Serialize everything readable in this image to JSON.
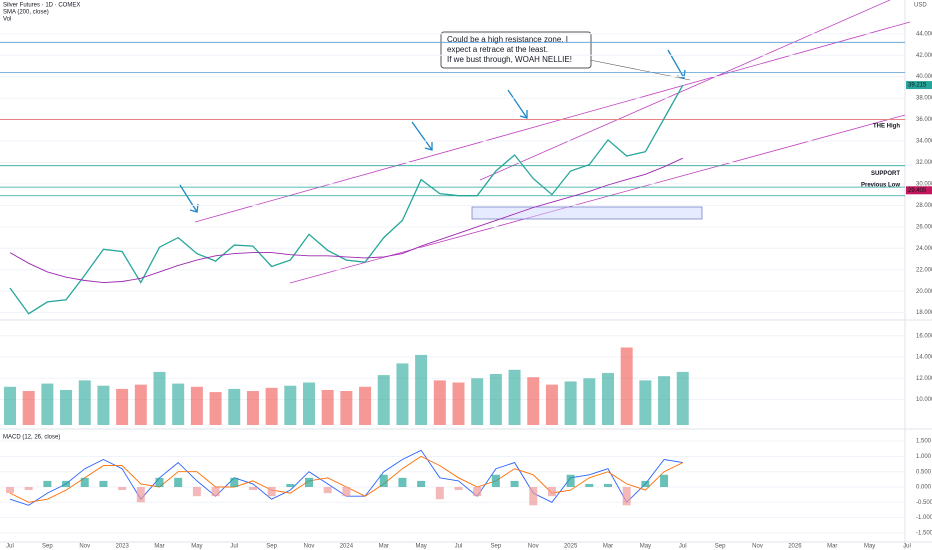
{
  "chart_data": [
    {
      "type": "line",
      "title": "Silver Futures · 1D · COMEX",
      "currency": "USD",
      "pane": "price",
      "ylim": [
        17.5,
        46.4
      ],
      "yticks": [
        {
          "value": 18,
          "label": "18.000"
        },
        {
          "value": 20,
          "label": "20.000"
        },
        {
          "value": 22,
          "label": "22.000"
        },
        {
          "value": 24,
          "label": "24.000"
        },
        {
          "value": 26,
          "label": "26.000"
        },
        {
          "value": 28,
          "label": "28.000"
        },
        {
          "value": 30,
          "label": "30.000"
        },
        {
          "value": 32,
          "label": "32.000"
        },
        {
          "value": 34,
          "label": "34.000"
        },
        {
          "value": 36,
          "label": "36.000"
        },
        {
          "value": 38,
          "label": "38.000"
        },
        {
          "value": 40,
          "label": "40.000"
        },
        {
          "value": 42,
          "label": "42.000"
        },
        {
          "value": 44,
          "label": "44.000"
        }
      ],
      "series": [
        {
          "color": "#26a69a",
          "values": [
            20.3,
            17.9,
            19.0,
            19.2,
            21.5,
            23.9,
            23.7,
            20.8,
            24.1,
            25.0,
            23.5,
            22.8,
            24.3,
            24.2,
            22.3,
            22.9,
            25.3,
            23.8,
            22.9,
            22.7,
            25.0,
            26.6,
            30.4,
            29.1,
            28.9,
            28.9,
            31.2,
            32.7,
            30.5,
            29.0,
            31.2,
            31.8,
            34.1,
            32.6,
            33.0,
            36.1,
            39.2,
            null,
            null,
            null,
            null,
            null,
            null,
            null,
            null,
            null,
            null,
            null,
            null
          ]
        },
        {
          "name": "SMA (200, close)",
          "color": "#9c27b0",
          "values": [
            23.6,
            22.6,
            21.8,
            21.3,
            21.0,
            20.8,
            20.9,
            21.2,
            21.8,
            22.4,
            22.9,
            23.3,
            23.5,
            23.6,
            23.6,
            23.4,
            23.3,
            23.3,
            23.2,
            23.1,
            23.2,
            23.5,
            24.2,
            24.8,
            25.4,
            26.0,
            26.6,
            27.2,
            27.8,
            28.3,
            28.8,
            29.3,
            29.9,
            30.4,
            30.9,
            31.6,
            32.4,
            null,
            null,
            null,
            null,
            null,
            null,
            null,
            null,
            null,
            null,
            null,
            null
          ]
        }
      ],
      "hlines": [
        {
          "value": 43.2,
          "color": "#5b9bd5"
        },
        {
          "value": 40.4,
          "color": "#5b9bd5"
        },
        {
          "value": 36.0,
          "color": "#e57373"
        },
        {
          "value": 31.7,
          "color": "#26a69a"
        },
        {
          "value": 29.7,
          "color": "#26a69a"
        },
        {
          "value": 28.9,
          "color": "#26a69a"
        }
      ],
      "price_tags": [
        {
          "value": 39.215,
          "label": "39.215",
          "color": "#26a69a"
        },
        {
          "value": 29.405,
          "label": "29.405",
          "color": "#c2185b"
        }
      ],
      "notes": [
        {
          "text": "THE High",
          "value": 35.4
        },
        {
          "text": "SUPPORT",
          "value": 31.0
        },
        {
          "text": "Previous Low",
          "value": 29.9
        }
      ],
      "annotation": [
        "Could be a high resistance zone. I",
        "expect a retrace at the least.",
        "If we bust through, WOAH NELLIE!"
      ]
    },
    {
      "type": "bar",
      "pane": "volume",
      "ylim": [
        7.6,
        17.3
      ],
      "yticks": [
        {
          "value": 10,
          "label": "10.000"
        },
        {
          "value": 12,
          "label": "12.000"
        },
        {
          "value": 14,
          "label": "14.000"
        },
        {
          "value": 16,
          "label": "16.000"
        }
      ],
      "series": [
        {
          "name": "Vol",
          "color": "#26a69a",
          "down_color": "#ef5350",
          "values": [
            11.2,
            10.8,
            11.5,
            10.9,
            11.8,
            11.3,
            11.0,
            11.4,
            12.6,
            11.5,
            11.2,
            10.7,
            11.0,
            10.8,
            11.1,
            11.3,
            11.6,
            10.9,
            10.8,
            11.2,
            12.3,
            13.4,
            14.2,
            11.8,
            11.6,
            12.0,
            12.4,
            12.8,
            12.1,
            11.4,
            11.7,
            12.0,
            12.5,
            14.9,
            11.8,
            12.2,
            12.6,
            null,
            null,
            null,
            null,
            null,
            null,
            null,
            null,
            null,
            null,
            null,
            null
          ]
        }
      ]
    },
    {
      "type": "line",
      "pane": "macd",
      "title": "MACD (12, 26, close)",
      "ylim": [
        -1.8,
        1.8
      ],
      "yticks": [
        {
          "value": -1.5,
          "label": "-1.500"
        },
        {
          "value": -1,
          "label": "-1.000"
        },
        {
          "value": -0.5,
          "label": "-0.500"
        },
        {
          "value": 0,
          "label": "0.000"
        },
        {
          "value": 0.5,
          "label": "0.500"
        },
        {
          "value": 1,
          "label": "1.000"
        },
        {
          "value": 1.5,
          "label": "1.500"
        }
      ],
      "categories": [
        "Jul",
        null,
        "Sep",
        null,
        "Nov",
        null,
        "2023",
        null,
        "Mar",
        null,
        "May",
        null,
        "Jul",
        null,
        "Sep",
        null,
        "Nov",
        null,
        "2024",
        null,
        "Mar",
        null,
        "May",
        null,
        "Jul",
        null,
        "Sep",
        null,
        "Nov",
        null,
        "2025",
        null,
        "Mar",
        null,
        "May",
        null,
        "Jul",
        null,
        "Sep",
        null,
        "Nov",
        null,
        "2026",
        null,
        "Mar",
        null,
        "May",
        null,
        "Jul"
      ],
      "series": [
        {
          "color": "#2962ff",
          "values": [
            -0.4,
            -0.6,
            -0.2,
            0.1,
            0.6,
            0.9,
            0.6,
            -0.4,
            0.3,
            0.8,
            0.2,
            -0.3,
            0.3,
            0.1,
            -0.4,
            -0.1,
            0.5,
            0.1,
            -0.3,
            -0.3,
            0.5,
            0.9,
            1.2,
            0.3,
            0.2,
            -0.3,
            0.6,
            0.8,
            -0.2,
            -0.5,
            0.3,
            0.4,
            0.6,
            -0.5,
            0.1,
            0.9,
            0.8,
            null,
            null,
            null,
            null,
            null,
            null,
            null,
            null,
            null,
            null,
            null,
            null
          ]
        },
        {
          "color": "#ff6d00",
          "values": [
            -0.2,
            -0.5,
            -0.4,
            -0.1,
            0.3,
            0.7,
            0.7,
            0.1,
            0.0,
            0.5,
            0.5,
            0.0,
            0.0,
            0.2,
            -0.1,
            -0.2,
            0.2,
            0.3,
            0.0,
            -0.3,
            0.1,
            0.6,
            1.0,
            0.7,
            0.3,
            0.0,
            0.2,
            0.6,
            0.4,
            -0.2,
            -0.1,
            0.3,
            0.5,
            0.1,
            -0.1,
            0.5,
            0.8,
            null,
            null,
            null,
            null,
            null,
            null,
            null,
            null,
            null,
            null,
            null,
            null
          ]
        }
      ]
    }
  ]
}
